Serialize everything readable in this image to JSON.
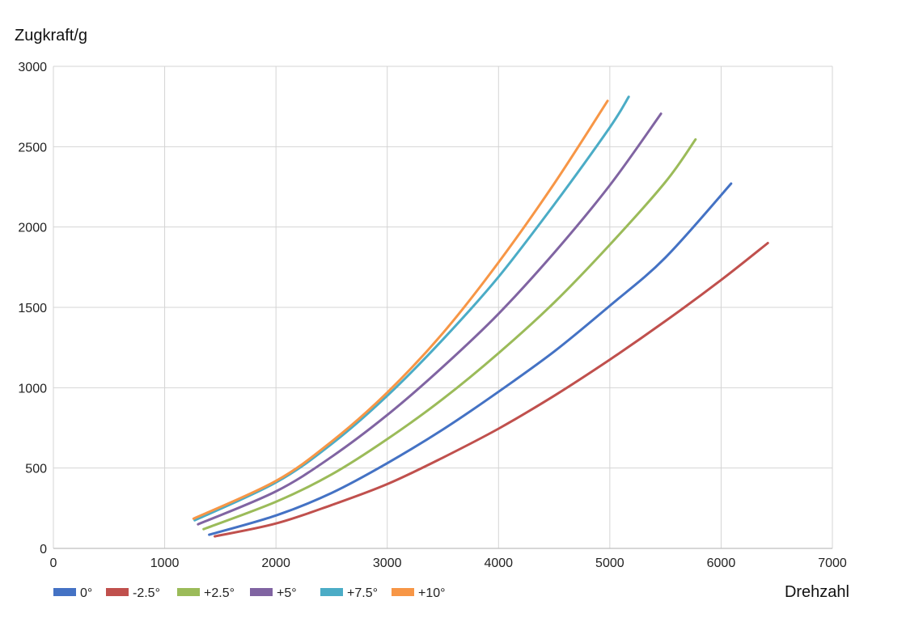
{
  "chart_data": {
    "type": "line",
    "title": "",
    "xlabel": "Drehzahl",
    "ylabel": "Zugkraft/g",
    "xlim": [
      0,
      7000
    ],
    "ylim": [
      0,
      3000
    ],
    "xticks": [
      0,
      1000,
      2000,
      3000,
      4000,
      5000,
      6000,
      7000
    ],
    "yticks": [
      0,
      500,
      1000,
      1500,
      2000,
      2500,
      3000
    ],
    "grid": true,
    "legend_position": "bottom-left",
    "series": [
      {
        "name": "0°",
        "color": "#4472C4",
        "points": [
          [
            1400,
            85
          ],
          [
            2000,
            205
          ],
          [
            2500,
            345
          ],
          [
            3000,
            530
          ],
          [
            3500,
            740
          ],
          [
            4000,
            975
          ],
          [
            4500,
            1225
          ],
          [
            5000,
            1510
          ],
          [
            5500,
            1810
          ],
          [
            6090,
            2270
          ]
        ]
      },
      {
        "name": "-2.5°",
        "color": "#C0504D",
        "points": [
          [
            1450,
            75
          ],
          [
            2000,
            155
          ],
          [
            2500,
            270
          ],
          [
            3000,
            400
          ],
          [
            3500,
            565
          ],
          [
            4000,
            745
          ],
          [
            4500,
            950
          ],
          [
            5000,
            1175
          ],
          [
            5500,
            1415
          ],
          [
            6000,
            1670
          ],
          [
            6420,
            1900
          ]
        ]
      },
      {
        "name": "+2.5°",
        "color": "#9BBB59",
        "points": [
          [
            1350,
            120
          ],
          [
            2000,
            290
          ],
          [
            2500,
            460
          ],
          [
            3000,
            680
          ],
          [
            3500,
            930
          ],
          [
            4000,
            1215
          ],
          [
            4500,
            1530
          ],
          [
            5000,
            1890
          ],
          [
            5500,
            2280
          ],
          [
            5770,
            2545
          ]
        ]
      },
      {
        "name": "+5°",
        "color": "#8064A2",
        "points": [
          [
            1300,
            150
          ],
          [
            2000,
            355
          ],
          [
            2500,
            570
          ],
          [
            3000,
            830
          ],
          [
            3500,
            1130
          ],
          [
            4000,
            1460
          ],
          [
            4500,
            1840
          ],
          [
            5000,
            2260
          ],
          [
            5460,
            2705
          ]
        ]
      },
      {
        "name": "+7.5°",
        "color": "#4BACC6",
        "points": [
          [
            1270,
            175
          ],
          [
            2000,
            410
          ],
          [
            2500,
            650
          ],
          [
            3000,
            950
          ],
          [
            3500,
            1300
          ],
          [
            4000,
            1690
          ],
          [
            4500,
            2140
          ],
          [
            5000,
            2620
          ],
          [
            5170,
            2810
          ]
        ]
      },
      {
        "name": "+10°",
        "color": "#F79646",
        "points": [
          [
            1260,
            185
          ],
          [
            2000,
            420
          ],
          [
            2500,
            665
          ],
          [
            3000,
            970
          ],
          [
            3500,
            1340
          ],
          [
            4000,
            1780
          ],
          [
            4500,
            2270
          ],
          [
            4980,
            2785
          ]
        ]
      }
    ]
  }
}
